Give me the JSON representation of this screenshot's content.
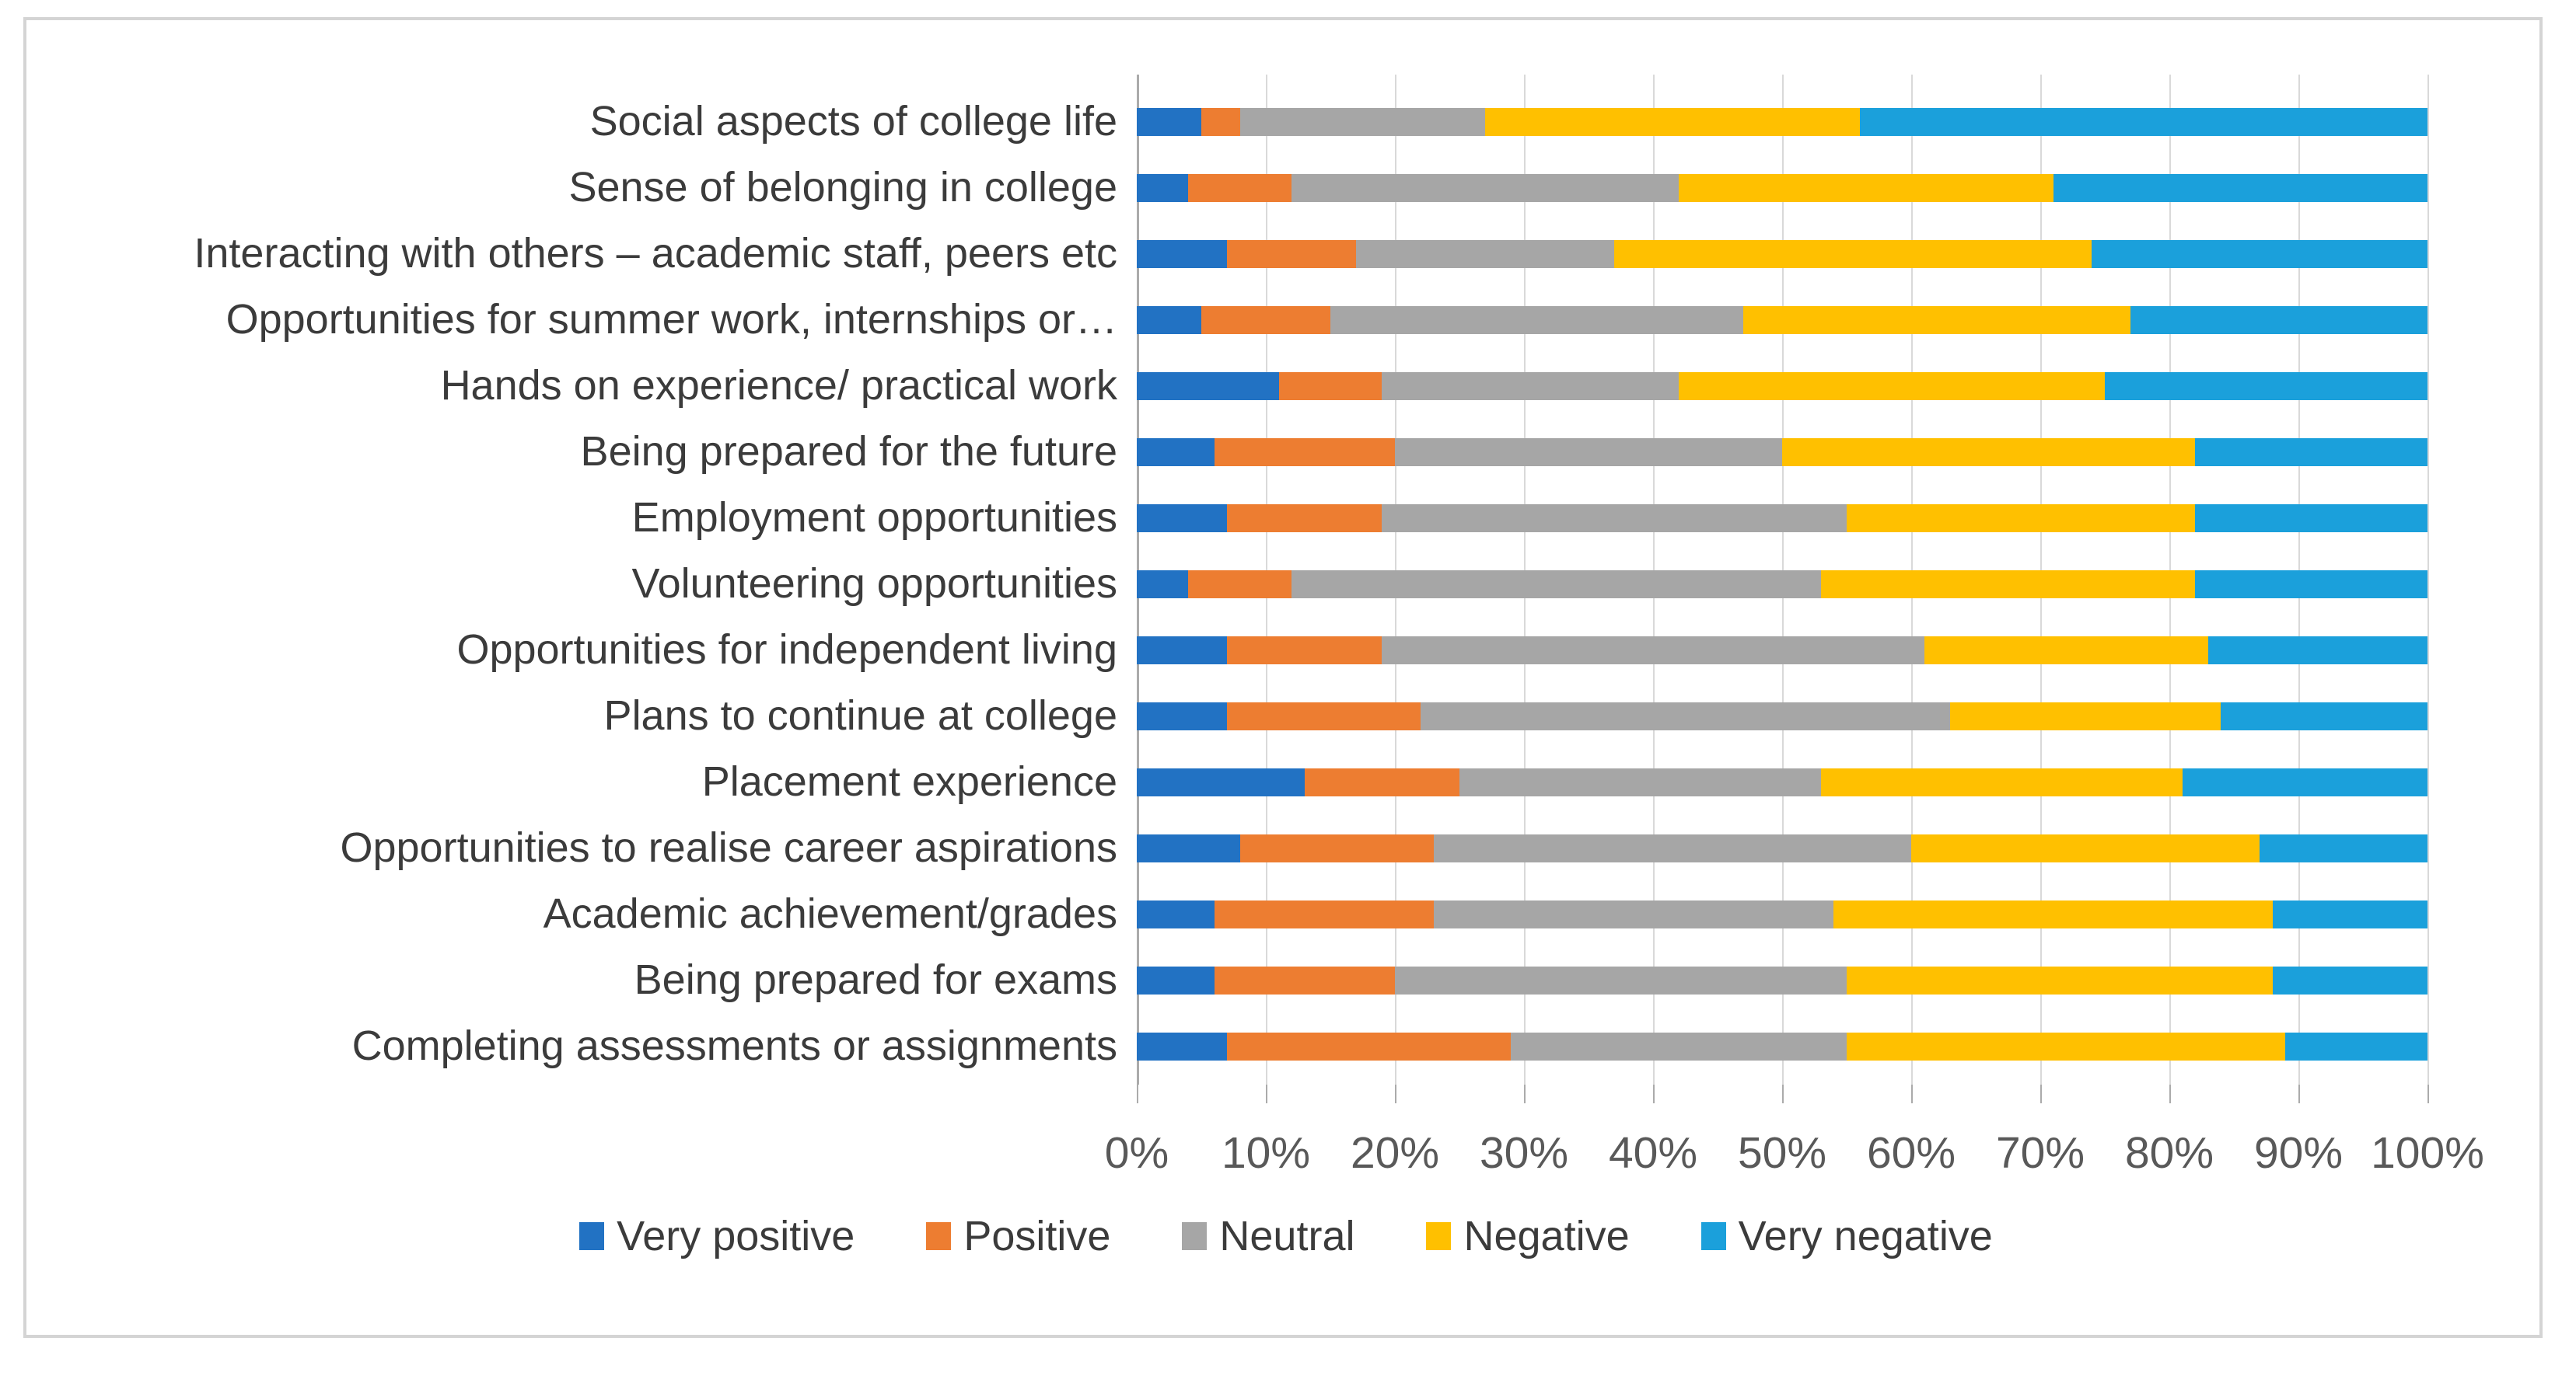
{
  "figure": {
    "background": "#ffffff",
    "border_color": "#d4d4d4",
    "gridline_color": "#d9d9d9",
    "axis_line_color": "#ababab",
    "category_label_color": "#3b3b3b",
    "axis_label_color": "#595959"
  },
  "chart_data": {
    "type": "bar",
    "orientation": "horizontal",
    "stacked": true,
    "unit": "percent",
    "title": "",
    "xlabel": "",
    "ylabel": "",
    "xlim": [
      0,
      100
    ],
    "grid": true,
    "legend_position": "bottom",
    "categories": [
      "Social aspects of college life",
      "Sense of belonging in college",
      "Interacting with others – academic staff, peers etc",
      "Opportunities for summer work, internships or…",
      "Hands on experience/ practical work",
      "Being prepared for the future",
      "Employment opportunities",
      "Volunteering opportunities",
      "Opportunities for independent living",
      "Plans to continue at college",
      "Placement experience",
      "Opportunities to realise career aspirations",
      "Academic achievement/grades",
      "Being prepared for exams",
      "Completing assessments or assignments"
    ],
    "series": [
      {
        "name": "Very positive",
        "color": "#2272c3",
        "values": [
          5,
          4,
          7,
          5,
          11,
          6,
          7,
          4,
          7,
          7,
          13,
          8,
          6,
          6,
          7
        ]
      },
      {
        "name": "Positive",
        "color": "#ed7d31",
        "values": [
          3,
          8,
          10,
          10,
          8,
          14,
          12,
          8,
          12,
          15,
          12,
          15,
          17,
          14,
          22
        ]
      },
      {
        "name": "Neutral",
        "color": "#a6a6a6",
        "values": [
          19,
          30,
          20,
          32,
          23,
          30,
          36,
          41,
          42,
          41,
          28,
          37,
          31,
          35,
          26
        ]
      },
      {
        "name": "Negative",
        "color": "#ffc000",
        "values": [
          29,
          29,
          37,
          30,
          33,
          32,
          27,
          29,
          22,
          21,
          28,
          27,
          34,
          33,
          34
        ]
      },
      {
        "name": "Very negative",
        "color": "#1ba0db",
        "values": [
          44,
          29,
          26,
          23,
          25,
          18,
          18,
          18,
          17,
          16,
          19,
          13,
          12,
          12,
          11
        ]
      }
    ],
    "x_axis": {
      "tick_labels": [
        "0%",
        "10%",
        "20%",
        "30%",
        "40%",
        "50%",
        "60%",
        "70%",
        "80%",
        "90%",
        "100%"
      ],
      "tick_values": [
        0,
        10,
        20,
        30,
        40,
        50,
        60,
        70,
        80,
        90,
        100
      ]
    }
  }
}
